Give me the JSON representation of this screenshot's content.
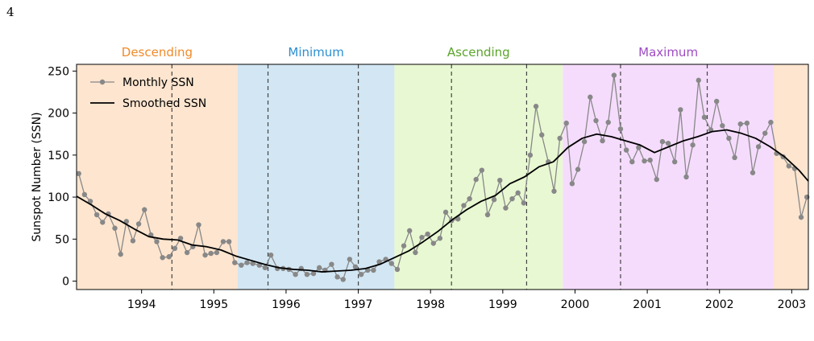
{
  "page_number": "4",
  "chart_data": {
    "type": "line",
    "title": "",
    "xlabel": "",
    "ylabel": "Sunspot Number (SSN)",
    "xlim": [
      1993.1,
      2003.23
    ],
    "ylim": [
      -10,
      258
    ],
    "yticks": [
      0,
      50,
      100,
      150,
      200,
      250
    ],
    "xticks": [
      1994,
      1995,
      1996,
      1997,
      1998,
      1999,
      2000,
      2001,
      2002,
      2003
    ],
    "grid": false,
    "legend_position": "top-left",
    "legend": [
      {
        "label": "Monthly SSN",
        "style": "gray-line-marker"
      },
      {
        "label": "Smoothed SSN",
        "style": "black-line"
      }
    ],
    "phases": [
      {
        "label": "Descending",
        "start": 1993.1,
        "end": 1995.33,
        "fill": "#fde5cf",
        "text_color": "#f08a2a"
      },
      {
        "label": "Minimum",
        "start": 1995.33,
        "end": 1997.5,
        "fill": "#d2e6f3",
        "text_color": "#2b8fd1"
      },
      {
        "label": "Ascending",
        "start": 1997.5,
        "end": 1999.83,
        "fill": "#e8f8d2",
        "text_color": "#5aa52a"
      },
      {
        "label": "Maximum",
        "start": 1999.83,
        "end": 2002.75,
        "fill": "#f5dcfc",
        "text_color": "#a04bc4"
      },
      {
        "label": "",
        "start": 2002.75,
        "end": 2003.23,
        "fill": "#fde5cf",
        "text_color": "#f08a2a"
      }
    ],
    "dashed_lines": [
      1994.42,
      1995.75,
      1997.0,
      1998.29,
      1999.33,
      2000.63,
      2001.83
    ],
    "series": [
      {
        "name": "Monthly SSN",
        "color": "#888888",
        "x": [
          1993.13,
          1993.21,
          1993.29,
          1993.38,
          1993.46,
          1993.54,
          1993.63,
          1993.71,
          1993.79,
          1993.88,
          1993.96,
          1994.04,
          1994.13,
          1994.21,
          1994.29,
          1994.38,
          1994.46,
          1994.54,
          1994.63,
          1994.71,
          1994.79,
          1994.88,
          1994.96,
          1995.04,
          1995.13,
          1995.21,
          1995.29,
          1995.38,
          1995.46,
          1995.54,
          1995.63,
          1995.71,
          1995.79,
          1995.88,
          1995.96,
          1996.04,
          1996.13,
          1996.21,
          1996.29,
          1996.38,
          1996.46,
          1996.54,
          1996.63,
          1996.71,
          1996.79,
          1996.88,
          1996.96,
          1997.04,
          1997.13,
          1997.21,
          1997.29,
          1997.38,
          1997.46,
          1997.54,
          1997.63,
          1997.71,
          1997.79,
          1997.88,
          1997.96,
          1998.04,
          1998.13,
          1998.21,
          1998.29,
          1998.38,
          1998.46,
          1998.54,
          1998.63,
          1998.71,
          1998.79,
          1998.88,
          1998.96,
          1999.04,
          1999.13,
          1999.21,
          1999.29,
          1999.38,
          1999.46,
          1999.54,
          1999.63,
          1999.71,
          1999.79,
          1999.88,
          1999.96,
          2000.04,
          2000.13,
          2000.21,
          2000.29,
          2000.38,
          2000.46,
          2000.54,
          2000.63,
          2000.71,
          2000.79,
          2000.88,
          2000.96,
          2001.04,
          2001.13,
          2001.21,
          2001.29,
          2001.38,
          2001.46,
          2001.54,
          2001.63,
          2001.71,
          2001.79,
          2001.88,
          2001.96,
          2002.04,
          2002.13,
          2002.21,
          2002.29,
          2002.38,
          2002.46,
          2002.54,
          2002.63,
          2002.71,
          2002.79,
          2002.88,
          2002.96,
          2003.04,
          2003.13,
          2003.21
        ],
        "values": [
          128,
          103,
          95,
          79,
          70,
          80,
          63,
          32,
          71,
          48,
          68,
          85,
          55,
          47,
          28,
          29,
          39,
          51,
          34,
          41,
          67,
          31,
          33,
          34,
          47,
          47,
          22,
          19,
          22,
          21,
          19,
          16,
          31,
          15,
          15,
          14,
          8,
          15,
          8,
          9,
          16,
          13,
          20,
          5,
          2,
          26,
          17,
          8,
          13,
          13,
          23,
          26,
          21,
          14,
          42,
          60,
          34,
          52,
          56,
          45,
          51,
          82,
          72,
          74,
          90,
          98,
          121,
          132,
          79,
          97,
          120,
          87,
          98,
          105,
          93,
          150,
          208,
          174,
          142,
          107,
          170,
          188,
          116,
          133,
          166,
          219,
          191,
          167,
          189,
          245,
          181,
          156,
          142,
          159,
          143,
          144,
          121,
          166,
          164,
          142,
          204,
          124,
          162,
          239,
          195,
          180,
          214,
          185,
          170,
          147,
          187,
          188,
          129,
          160,
          176,
          189,
          152,
          148,
          137,
          134,
          76,
          100
        ]
      },
      {
        "name": "Smoothed SSN",
        "color": "#000000",
        "x": [
          1993.1,
          1993.3,
          1993.5,
          1993.7,
          1993.9,
          1994.1,
          1994.3,
          1994.5,
          1994.7,
          1994.9,
          1995.1,
          1995.3,
          1995.5,
          1995.7,
          1995.9,
          1996.1,
          1996.3,
          1996.5,
          1996.7,
          1996.9,
          1997.1,
          1997.3,
          1997.5,
          1997.7,
          1997.9,
          1998.1,
          1998.3,
          1998.5,
          1998.7,
          1998.9,
          1999.1,
          1999.3,
          1999.5,
          1999.7,
          1999.9,
          2000.1,
          2000.3,
          2000.5,
          2000.7,
          2000.9,
          2001.1,
          2001.3,
          2001.5,
          2001.7,
          2001.9,
          2002.1,
          2002.3,
          2002.5,
          2002.7,
          2002.9,
          2003.1,
          2003.23
        ],
        "values": [
          101,
          91,
          80,
          72,
          62,
          53,
          50,
          49,
          43,
          41,
          37,
          30,
          25,
          20,
          16,
          14,
          13,
          11,
          12,
          13,
          15,
          20,
          28,
          36,
          47,
          59,
          73,
          85,
          95,
          102,
          116,
          124,
          136,
          142,
          159,
          170,
          175,
          172,
          167,
          162,
          153,
          160,
          167,
          172,
          178,
          180,
          176,
          170,
          160,
          148,
          132,
          119
        ]
      }
    ]
  }
}
